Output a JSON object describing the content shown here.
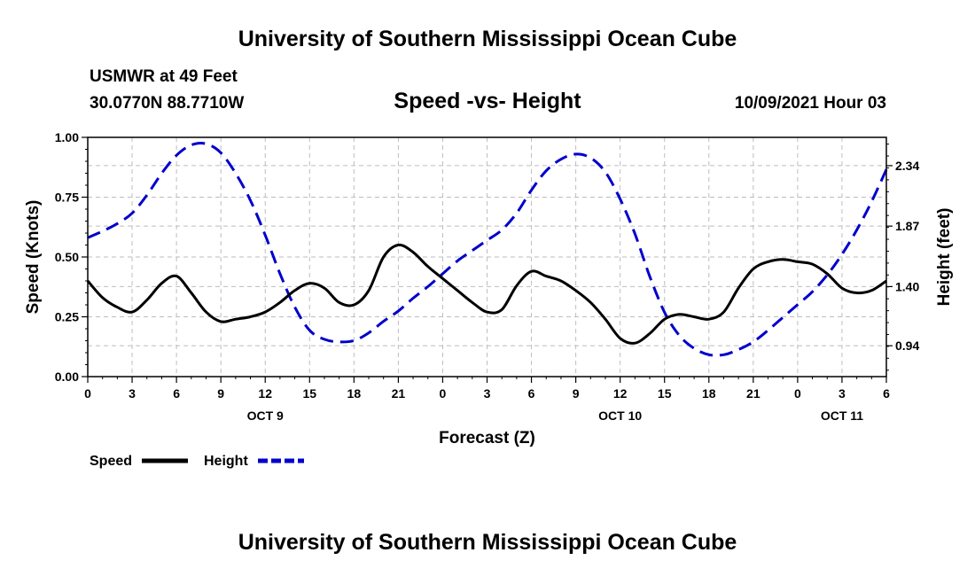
{
  "header": {
    "title": "University of Southern Mississippi Ocean Cube",
    "station": "USMWR at 49 Feet",
    "coords": "30.0770N  88.7710W",
    "chart_title": "Speed -vs- Height",
    "datetime": "10/09/2021 Hour 03"
  },
  "footer": {
    "title": "University of Southern Mississippi Ocean Cube"
  },
  "chart_data": {
    "type": "line",
    "title": "Speed -vs- Height",
    "xlabel": "Forecast (Z)",
    "ylabel": "Speed (Knots)",
    "y2label": "Height (feet)",
    "grid": true,
    "xlim": [
      0,
      54
    ],
    "ylim": [
      0,
      1.0
    ],
    "y2lim": [
      0.7,
      2.56
    ],
    "x_ticks": [
      0,
      3,
      6,
      9,
      12,
      15,
      18,
      21,
      24,
      27,
      30,
      33,
      36,
      39,
      42,
      45,
      48,
      51,
      54
    ],
    "x_tick_labels": [
      "0",
      "3",
      "6",
      "9",
      "12",
      "15",
      "18",
      "21",
      "0",
      "3",
      "6",
      "9",
      "12",
      "15",
      "18",
      "21",
      "0",
      "3",
      "6"
    ],
    "day_labels": [
      {
        "x": 12,
        "label": "OCT 9"
      },
      {
        "x": 36,
        "label": "OCT 10"
      },
      {
        "x": 51,
        "label": "OCT 11"
      }
    ],
    "y_ticks": [
      0.0,
      0.25,
      0.5,
      0.75,
      1.0
    ],
    "y_tick_labels": [
      "0.00",
      "0.25",
      "0.50",
      "0.75",
      "1.00"
    ],
    "y2_ticks": [
      0.94,
      1.4,
      1.87,
      2.34
    ],
    "y2_tick_labels": [
      "0.94",
      "1.40",
      "1.87",
      "2.34"
    ],
    "legend": [
      "Speed",
      "Height"
    ],
    "series": [
      {
        "name": "Speed",
        "axis": "left",
        "color": "#000000",
        "style": "solid",
        "x": [
          0,
          1,
          2,
          3,
          4,
          5,
          6,
          7,
          8,
          9,
          10,
          11,
          12,
          13,
          14,
          15,
          16,
          17,
          18,
          19,
          20,
          21,
          22,
          23,
          24,
          25,
          26,
          27,
          28,
          29,
          30,
          31,
          32,
          33,
          34,
          35,
          36,
          37,
          38,
          39,
          40,
          41,
          42,
          43,
          44,
          45,
          46,
          47,
          48,
          49,
          50,
          51,
          52,
          53,
          54
        ],
        "values": [
          0.4,
          0.33,
          0.29,
          0.27,
          0.32,
          0.39,
          0.42,
          0.35,
          0.27,
          0.23,
          0.24,
          0.25,
          0.27,
          0.31,
          0.36,
          0.39,
          0.37,
          0.31,
          0.3,
          0.36,
          0.5,
          0.55,
          0.52,
          0.46,
          0.41,
          0.36,
          0.31,
          0.27,
          0.28,
          0.38,
          0.44,
          0.42,
          0.4,
          0.36,
          0.31,
          0.24,
          0.16,
          0.14,
          0.18,
          0.24,
          0.26,
          0.25,
          0.24,
          0.27,
          0.37,
          0.45,
          0.48,
          0.49,
          0.48,
          0.47,
          0.43,
          0.37,
          0.35,
          0.36,
          0.4
        ]
      },
      {
        "name": "Height",
        "axis": "right",
        "color": "#0000cc",
        "style": "dashed",
        "x": [
          0,
          1,
          2,
          3,
          4,
          5,
          6,
          7,
          8,
          9,
          10,
          11,
          12,
          13,
          14,
          15,
          16,
          17,
          18,
          19,
          20,
          21,
          22,
          23,
          24,
          25,
          26,
          27,
          28,
          29,
          30,
          31,
          32,
          33,
          34,
          35,
          36,
          37,
          38,
          39,
          40,
          41,
          42,
          43,
          44,
          45,
          46,
          47,
          48,
          49,
          50,
          51,
          52,
          53,
          54
        ],
        "values": [
          1.78,
          1.83,
          1.89,
          1.97,
          2.11,
          2.28,
          2.42,
          2.5,
          2.51,
          2.44,
          2.28,
          2.07,
          1.8,
          1.5,
          1.24,
          1.06,
          0.99,
          0.97,
          0.98,
          1.04,
          1.13,
          1.21,
          1.31,
          1.4,
          1.5,
          1.6,
          1.68,
          1.76,
          1.84,
          1.97,
          2.15,
          2.3,
          2.39,
          2.43,
          2.4,
          2.29,
          2.08,
          1.81,
          1.48,
          1.2,
          1.02,
          0.92,
          0.87,
          0.87,
          0.91,
          0.97,
          1.06,
          1.16,
          1.26,
          1.36,
          1.49,
          1.65,
          1.84,
          2.06,
          2.31
        ]
      }
    ]
  }
}
